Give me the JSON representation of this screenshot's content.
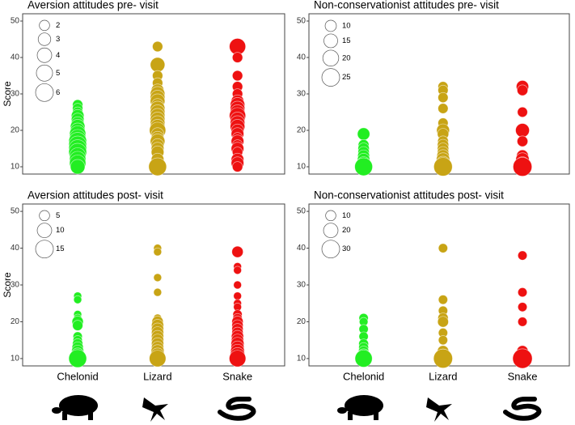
{
  "chart_data": [
    {
      "type": "bubble",
      "title": "Aversion attitudes pre- visit",
      "ylabel": "Score",
      "ylim": [
        8,
        52
      ],
      "yticks": [
        10,
        20,
        30,
        40,
        50
      ],
      "legend_sizes": [
        2,
        3,
        4,
        5,
        6
      ],
      "series": [
        {
          "color": "#22ee22",
          "values": [
            27,
            26,
            25,
            24,
            23,
            22,
            21,
            20,
            19,
            18,
            17,
            16,
            15,
            14,
            13,
            12,
            11,
            10
          ],
          "sizes": [
            2,
            2,
            2,
            3,
            3,
            3,
            4,
            4,
            5,
            5,
            6,
            6,
            6,
            6,
            5,
            5,
            5,
            4
          ]
        },
        {
          "color": "#c8a415",
          "values": [
            43,
            38,
            35,
            33,
            31,
            30,
            29,
            28,
            27,
            26,
            25,
            24,
            23,
            22,
            21,
            20,
            19,
            18,
            17,
            16,
            15,
            14,
            12,
            10
          ],
          "sizes": [
            2,
            4,
            2,
            2,
            3,
            4,
            4,
            4,
            3,
            4,
            4,
            4,
            4,
            4,
            4,
            5,
            3,
            3,
            4,
            3,
            3,
            3,
            3,
            6
          ]
        },
        {
          "color": "#ee1111",
          "values": [
            43,
            40,
            35,
            32,
            30,
            28,
            27,
            26,
            25,
            24,
            23,
            22,
            21,
            20,
            19,
            18,
            17,
            16,
            15,
            14,
            12,
            11,
            10
          ],
          "sizes": [
            5,
            2,
            2,
            2,
            2,
            3,
            4,
            4,
            4,
            5,
            4,
            4,
            4,
            3,
            3,
            2,
            3,
            2,
            3,
            2,
            3,
            3,
            2
          ]
        }
      ]
    },
    {
      "type": "bubble",
      "title": "Non-conservationist attitudes pre- visit",
      "ylim": [
        8,
        52
      ],
      "yticks": [
        10,
        20,
        30,
        40,
        50
      ],
      "legend_sizes": [
        10,
        15,
        20,
        25
      ],
      "series": [
        {
          "color": "#22ee22",
          "values": [
            19,
            16,
            15,
            14,
            13,
            12,
            11,
            10
          ],
          "sizes": [
            12,
            9,
            10,
            10,
            11,
            12,
            13,
            25
          ]
        },
        {
          "color": "#c8a415",
          "values": [
            32,
            31,
            29,
            26,
            22,
            20,
            19,
            17,
            16,
            15,
            14,
            13,
            12,
            11,
            10
          ],
          "sizes": [
            8,
            8,
            8,
            8,
            8,
            13,
            10,
            9,
            10,
            10,
            10,
            12,
            14,
            15,
            27
          ]
        },
        {
          "color": "#ee1111",
          "values": [
            32,
            31,
            25,
            20,
            17,
            13,
            12,
            11,
            10
          ],
          "sizes": [
            12,
            9,
            8,
            15,
            9,
            11,
            14,
            13,
            28
          ]
        }
      ]
    },
    {
      "type": "bubble",
      "title": "Aversion attitudes post- visit",
      "ylabel": "Score",
      "ylim": [
        8,
        52
      ],
      "yticks": [
        10,
        20,
        30,
        40,
        50
      ],
      "legend_sizes": [
        5,
        10,
        15
      ],
      "categories": [
        "Chelonid",
        "Lizard",
        "Snake"
      ],
      "series": [
        {
          "color": "#22ee22",
          "values": [
            27,
            26,
            22,
            21,
            20,
            19,
            16,
            15,
            14,
            13,
            12,
            11,
            10
          ],
          "sizes": [
            3,
            3,
            3,
            3,
            6,
            5,
            4,
            4,
            5,
            6,
            7,
            9,
            15
          ]
        },
        {
          "color": "#c8a415",
          "values": [
            40,
            39,
            32,
            28,
            21,
            20,
            19,
            18,
            17,
            16,
            15,
            14,
            13,
            12,
            11,
            10
          ],
          "sizes": [
            3,
            3,
            3,
            3,
            3,
            6,
            7,
            7,
            7,
            7,
            7,
            7,
            7,
            8,
            9,
            13
          ]
        },
        {
          "color": "#ee1111",
          "values": [
            39,
            35,
            34,
            30,
            27,
            25,
            24,
            22,
            21,
            20,
            19,
            18,
            17,
            16,
            15,
            14,
            13,
            12,
            11,
            10
          ],
          "sizes": [
            6,
            3,
            3,
            3,
            3,
            3,
            3,
            4,
            4,
            6,
            6,
            6,
            6,
            7,
            7,
            8,
            8,
            9,
            10,
            13
          ]
        }
      ]
    },
    {
      "type": "bubble",
      "title": "Non-conservationist attitudes post- visit",
      "ylim": [
        8,
        52
      ],
      "yticks": [
        10,
        20,
        30,
        40,
        50
      ],
      "legend_sizes": [
        10,
        20,
        30
      ],
      "categories": [
        "Chelonid",
        "Lizard",
        "Snake"
      ],
      "series": [
        {
          "color": "#22ee22",
          "values": [
            21,
            20,
            18,
            16,
            14,
            13,
            12,
            11,
            10
          ],
          "sizes": [
            8,
            7,
            8,
            8,
            9,
            9,
            10,
            14,
            28
          ]
        },
        {
          "color": "#c8a415",
          "values": [
            40,
            26,
            23,
            21,
            20,
            17,
            15,
            12,
            11,
            10
          ],
          "sizes": [
            8,
            8,
            8,
            10,
            11,
            8,
            8,
            12,
            13,
            34
          ]
        },
        {
          "color": "#ee1111",
          "values": [
            38,
            28,
            24,
            20,
            12,
            10
          ],
          "sizes": [
            8,
            8,
            8,
            8,
            12,
            36
          ]
        }
      ]
    }
  ]
}
